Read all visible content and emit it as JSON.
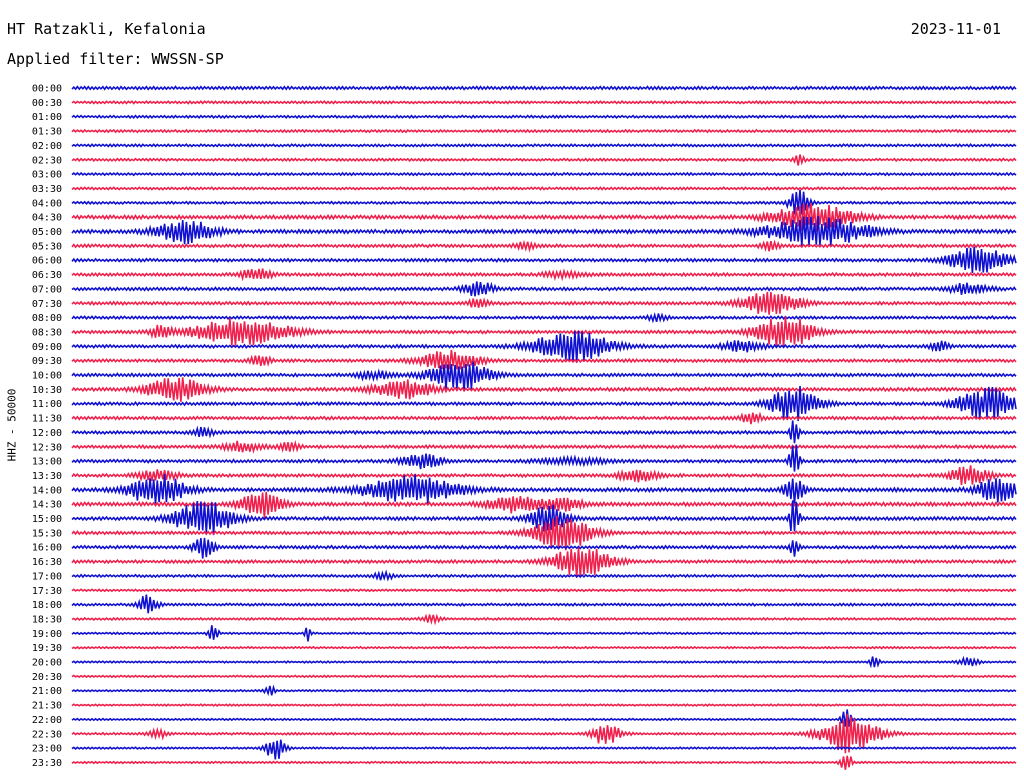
{
  "header": {
    "station": "HT Ratzakli, Kefalonia",
    "date": "2023-11-01",
    "filter": "Applied filter: WWSSN-SP"
  },
  "channel_label": "HHZ - 50000",
  "colors": {
    "even_trace": "#1010d0",
    "odd_trace": "#f0204c"
  },
  "chart_data": {
    "type": "helicorder",
    "title": "HT Ratzakli, Kefalonia",
    "subtitle": "Applied filter: WWSSN-SP",
    "ylabel": "HHZ - 50000",
    "xlabel": "",
    "grid": false,
    "legend": "none",
    "rows": [
      {
        "label": "00:00",
        "amplitude": 1.0,
        "events": []
      },
      {
        "label": "00:30",
        "amplitude": 0.8,
        "events": []
      },
      {
        "label": "01:00",
        "amplitude": 0.8,
        "events": []
      },
      {
        "label": "01:30",
        "amplitude": 0.8,
        "events": []
      },
      {
        "label": "02:00",
        "amplitude": 0.8,
        "events": []
      },
      {
        "label": "02:30",
        "amplitude": 0.8,
        "events": [
          {
            "t": 0.77,
            "a": 6,
            "d": 0.005
          }
        ]
      },
      {
        "label": "03:00",
        "amplitude": 0.8,
        "events": []
      },
      {
        "label": "03:30",
        "amplitude": 0.8,
        "events": []
      },
      {
        "label": "04:00",
        "amplitude": 0.8,
        "events": [
          {
            "t": 0.77,
            "a": 14,
            "d": 0.01
          }
        ]
      },
      {
        "label": "04:30",
        "amplitude": 1.2,
        "events": [
          {
            "t": 0.785,
            "a": 14,
            "d": 0.04
          }
        ]
      },
      {
        "label": "05:00",
        "amplitude": 1.2,
        "events": [
          {
            "t": 0.12,
            "a": 12,
            "d": 0.03
          },
          {
            "t": 0.79,
            "a": 16,
            "d": 0.05
          }
        ]
      },
      {
        "label": "05:30",
        "amplitude": 1.0,
        "events": [
          {
            "t": 0.48,
            "a": 4,
            "d": 0.01
          },
          {
            "t": 0.74,
            "a": 5,
            "d": 0.01
          }
        ]
      },
      {
        "label": "06:00",
        "amplitude": 1.0,
        "events": [
          {
            "t": 0.96,
            "a": 14,
            "d": 0.03
          }
        ]
      },
      {
        "label": "06:30",
        "amplitude": 1.0,
        "events": [
          {
            "t": 0.195,
            "a": 6,
            "d": 0.015
          },
          {
            "t": 0.52,
            "a": 3,
            "d": 0.02
          }
        ]
      },
      {
        "label": "07:00",
        "amplitude": 1.0,
        "events": [
          {
            "t": 0.43,
            "a": 8,
            "d": 0.015
          },
          {
            "t": 0.95,
            "a": 6,
            "d": 0.02
          }
        ]
      },
      {
        "label": "07:30",
        "amplitude": 1.0,
        "events": [
          {
            "t": 0.43,
            "a": 5,
            "d": 0.01
          },
          {
            "t": 0.74,
            "a": 12,
            "d": 0.03
          }
        ]
      },
      {
        "label": "08:00",
        "amplitude": 0.9,
        "events": [
          {
            "t": 0.62,
            "a": 4,
            "d": 0.01
          }
        ]
      },
      {
        "label": "08:30",
        "amplitude": 1.0,
        "events": [
          {
            "t": 0.095,
            "a": 8,
            "d": 0.01
          },
          {
            "t": 0.18,
            "a": 14,
            "d": 0.05
          },
          {
            "t": 0.755,
            "a": 16,
            "d": 0.03
          }
        ]
      },
      {
        "label": "09:00",
        "amplitude": 1.0,
        "events": [
          {
            "t": 0.53,
            "a": 16,
            "d": 0.04
          },
          {
            "t": 0.71,
            "a": 6,
            "d": 0.02
          },
          {
            "t": 0.92,
            "a": 5,
            "d": 0.01
          }
        ]
      },
      {
        "label": "09:30",
        "amplitude": 1.0,
        "events": [
          {
            "t": 0.2,
            "a": 6,
            "d": 0.01
          },
          {
            "t": 0.4,
            "a": 10,
            "d": 0.03
          }
        ]
      },
      {
        "label": "10:00",
        "amplitude": 1.0,
        "events": [
          {
            "t": 0.32,
            "a": 4,
            "d": 0.02
          },
          {
            "t": 0.41,
            "a": 16,
            "d": 0.03
          }
        ]
      },
      {
        "label": "10:30",
        "amplitude": 1.1,
        "events": [
          {
            "t": 0.11,
            "a": 12,
            "d": 0.03
          },
          {
            "t": 0.35,
            "a": 10,
            "d": 0.03
          }
        ]
      },
      {
        "label": "11:00",
        "amplitude": 1.0,
        "events": [
          {
            "t": 0.765,
            "a": 18,
            "d": 0.025
          },
          {
            "t": 0.97,
            "a": 16,
            "d": 0.03
          }
        ]
      },
      {
        "label": "11:30",
        "amplitude": 1.0,
        "events": [
          {
            "t": 0.72,
            "a": 6,
            "d": 0.01
          }
        ]
      },
      {
        "label": "12:00",
        "amplitude": 1.0,
        "events": [
          {
            "t": 0.14,
            "a": 6,
            "d": 0.01
          },
          {
            "t": 0.765,
            "a": 20,
            "d": 0.004
          }
        ]
      },
      {
        "label": "12:30",
        "amplitude": 1.0,
        "events": [
          {
            "t": 0.18,
            "a": 5,
            "d": 0.02
          },
          {
            "t": 0.23,
            "a": 5,
            "d": 0.01
          }
        ]
      },
      {
        "label": "13:00",
        "amplitude": 1.0,
        "events": [
          {
            "t": 0.37,
            "a": 8,
            "d": 0.02
          },
          {
            "t": 0.53,
            "a": 3,
            "d": 0.04
          },
          {
            "t": 0.765,
            "a": 20,
            "d": 0.005
          }
        ]
      },
      {
        "label": "13:30",
        "amplitude": 1.0,
        "events": [
          {
            "t": 0.09,
            "a": 6,
            "d": 0.02
          },
          {
            "t": 0.6,
            "a": 6,
            "d": 0.02
          },
          {
            "t": 0.95,
            "a": 10,
            "d": 0.02
          }
        ]
      },
      {
        "label": "14:00",
        "amplitude": 1.2,
        "events": [
          {
            "t": 0.09,
            "a": 16,
            "d": 0.03
          },
          {
            "t": 0.36,
            "a": 14,
            "d": 0.05
          },
          {
            "t": 0.765,
            "a": 14,
            "d": 0.01
          },
          {
            "t": 0.98,
            "a": 14,
            "d": 0.02
          }
        ]
      },
      {
        "label": "14:30",
        "amplitude": 1.2,
        "events": [
          {
            "t": 0.2,
            "a": 14,
            "d": 0.02
          },
          {
            "t": 0.47,
            "a": 8,
            "d": 0.03
          },
          {
            "t": 0.52,
            "a": 6,
            "d": 0.02
          }
        ]
      },
      {
        "label": "15:00",
        "amplitude": 1.1,
        "events": [
          {
            "t": 0.14,
            "a": 18,
            "d": 0.03
          },
          {
            "t": 0.505,
            "a": 14,
            "d": 0.02
          },
          {
            "t": 0.765,
            "a": 20,
            "d": 0.005
          }
        ]
      },
      {
        "label": "15:30",
        "amplitude": 1.0,
        "events": [
          {
            "t": 0.52,
            "a": 18,
            "d": 0.03
          }
        ]
      },
      {
        "label": "16:00",
        "amplitude": 1.0,
        "events": [
          {
            "t": 0.14,
            "a": 12,
            "d": 0.01
          },
          {
            "t": 0.765,
            "a": 14,
            "d": 0.004
          }
        ]
      },
      {
        "label": "16:30",
        "amplitude": 1.0,
        "events": [
          {
            "t": 0.54,
            "a": 16,
            "d": 0.03
          }
        ]
      },
      {
        "label": "17:00",
        "amplitude": 0.8,
        "events": [
          {
            "t": 0.33,
            "a": 4,
            "d": 0.01
          }
        ]
      },
      {
        "label": "17:30",
        "amplitude": 0.7,
        "events": []
      },
      {
        "label": "18:00",
        "amplitude": 0.8,
        "events": [
          {
            "t": 0.08,
            "a": 10,
            "d": 0.01
          }
        ]
      },
      {
        "label": "18:30",
        "amplitude": 0.7,
        "events": [
          {
            "t": 0.38,
            "a": 4,
            "d": 0.01
          }
        ]
      },
      {
        "label": "19:00",
        "amplitude": 0.6,
        "events": [
          {
            "t": 0.15,
            "a": 10,
            "d": 0.005
          },
          {
            "t": 0.25,
            "a": 8,
            "d": 0.003
          }
        ]
      },
      {
        "label": "19:30",
        "amplitude": 0.6,
        "events": []
      },
      {
        "label": "20:00",
        "amplitude": 0.6,
        "events": [
          {
            "t": 0.85,
            "a": 6,
            "d": 0.005
          },
          {
            "t": 0.95,
            "a": 5,
            "d": 0.01
          }
        ]
      },
      {
        "label": "20:30",
        "amplitude": 0.6,
        "events": []
      },
      {
        "label": "21:00",
        "amplitude": 0.6,
        "events": [
          {
            "t": 0.21,
            "a": 5,
            "d": 0.005
          }
        ]
      },
      {
        "label": "21:30",
        "amplitude": 0.6,
        "events": []
      },
      {
        "label": "22:00",
        "amplitude": 0.6,
        "events": [
          {
            "t": 0.82,
            "a": 10,
            "d": 0.005
          }
        ]
      },
      {
        "label": "22:30",
        "amplitude": 0.7,
        "events": [
          {
            "t": 0.09,
            "a": 5,
            "d": 0.01
          },
          {
            "t": 0.565,
            "a": 12,
            "d": 0.015
          },
          {
            "t": 0.825,
            "a": 20,
            "d": 0.03
          }
        ]
      },
      {
        "label": "23:00",
        "amplitude": 0.6,
        "events": [
          {
            "t": 0.215,
            "a": 12,
            "d": 0.01
          }
        ]
      },
      {
        "label": "23:30",
        "amplitude": 0.6,
        "events": [
          {
            "t": 0.82,
            "a": 14,
            "d": 0.005
          }
        ]
      }
    ]
  }
}
